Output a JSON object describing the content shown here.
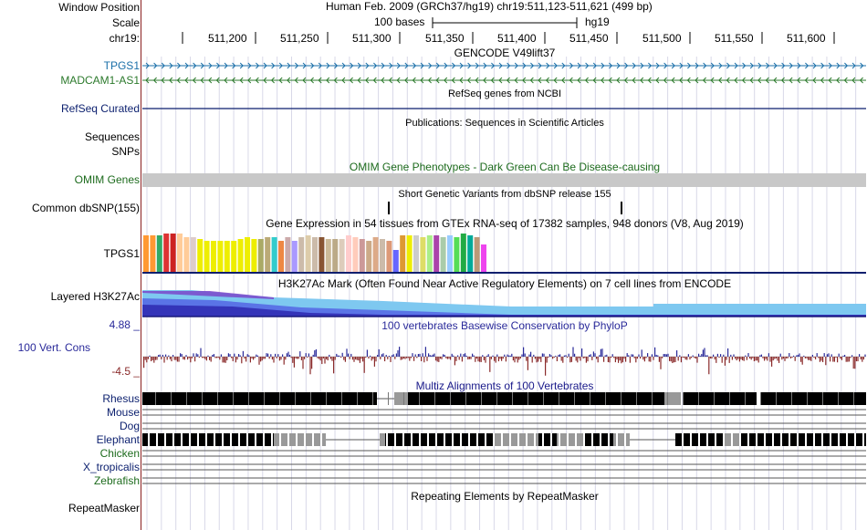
{
  "ruler": {
    "window_label": "Window Position",
    "scale_label": "Scale",
    "chrom_label": "chr19:",
    "assembly_text": "Human Feb. 2009 (GRCh37/hg19)   chr19:511,123-511,621 (499 bp)",
    "scale_bases": "100 bases",
    "scale_db": "hg19",
    "ticks": [
      "511,200",
      "511,250",
      "511,300",
      "511,350",
      "511,400",
      "511,450",
      "511,500",
      "511,550",
      "511,600"
    ]
  },
  "gencode": {
    "title": "GENCODE V49lift37",
    "tracks": [
      {
        "label": "TPGS1",
        "color": "#1a6fa8",
        "strand": "+"
      },
      {
        "label": "MADCAM1-AS1",
        "color": "#2c7a2c",
        "strand": "-"
      }
    ]
  },
  "refseq": {
    "title": "RefSeq genes from NCBI",
    "label": "RefSeq Curated",
    "color": "#0b1f6e"
  },
  "publications": {
    "title": "Publications: Sequences in Scientific Articles",
    "labels": [
      "Sequences",
      "SNPs"
    ]
  },
  "omim": {
    "title": "OMIM Gene Phenotypes - Dark Green Can Be Disease-causing",
    "label": "OMIM Genes",
    "title_color": "#1d6b1d",
    "label_color": "#1d6b1d"
  },
  "dbsnp": {
    "title": "Short Genetic Variants from dbSNP release 155",
    "label": "Common dbSNP(155)"
  },
  "gtex": {
    "title": "Gene Expression in 54 tissues from GTEx RNA-seq of 17382 samples, 948 donors (V8, Aug 2019)",
    "label": "TPGS1"
  },
  "h3k27ac": {
    "title": "H3K27Ac Mark (Often Found Near Active Regulatory Elements) on 7 cell lines from ENCODE",
    "label": "Layered H3K27Ac"
  },
  "phylop": {
    "title": "100 vertebrates Basewise Conservation by PhyloP",
    "label": "100 Vert. Cons",
    "max_label": "4.88 _",
    "min_label": "-4.5 _",
    "title_color": "#2a2a9a"
  },
  "multiz": {
    "title": "Multiz Alignments of 100 Vertebrates",
    "title_color": "#1a1a8a",
    "species": [
      "Rhesus",
      "Mouse",
      "Dog",
      "Elephant",
      "Chicken",
      "X_tropicalis",
      "Zebrafish"
    ]
  },
  "rmsk": {
    "title": "Repeating Elements by RepeatMasker",
    "label": "RepeatMasker"
  }
}
